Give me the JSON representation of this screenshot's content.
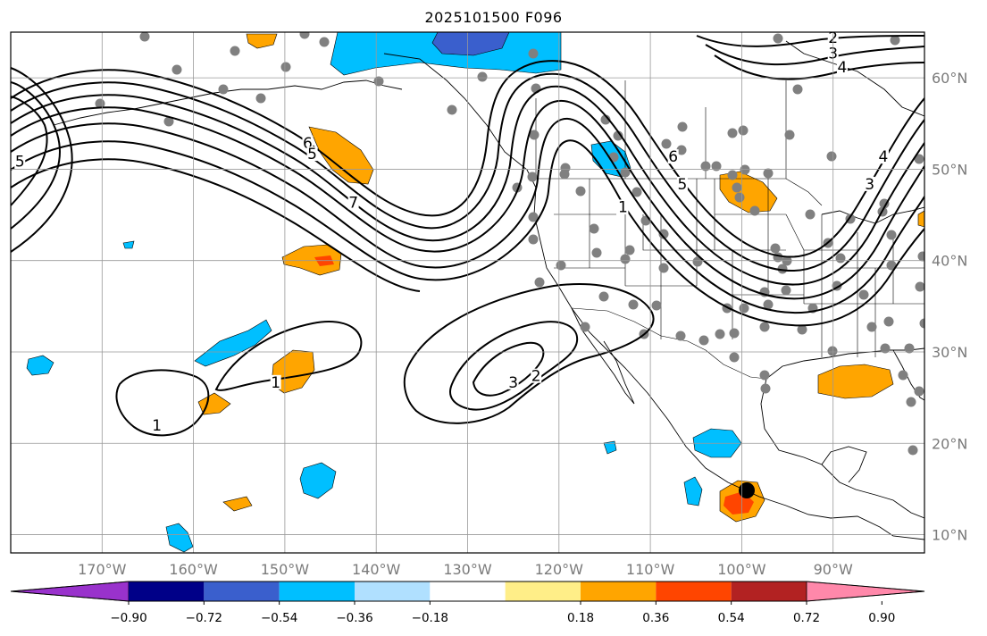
{
  "title": "2025101500 F096",
  "map": {
    "lon_ticks": [
      {
        "lon": -170,
        "label": "170°W"
      },
      {
        "lon": -160,
        "label": "160°W"
      },
      {
        "lon": -150,
        "label": "150°W"
      },
      {
        "lon": -140,
        "label": "140°W"
      },
      {
        "lon": -130,
        "label": "130°W"
      },
      {
        "lon": -120,
        "label": "120°W"
      },
      {
        "lon": -110,
        "label": "110°W"
      },
      {
        "lon": -100,
        "label": "100°W"
      },
      {
        "lon": -90,
        "label": "90°W"
      }
    ],
    "lat_ticks": [
      {
        "lat": 10,
        "label": "10°N"
      },
      {
        "lat": 20,
        "label": "20°N"
      },
      {
        "lat": 30,
        "label": "30°N"
      },
      {
        "lat": 40,
        "label": "40°N"
      },
      {
        "lat": 50,
        "label": "50°N"
      },
      {
        "lat": 60,
        "label": "60°N"
      }
    ],
    "extent": {
      "lon_min": -180,
      "lon_max": -80,
      "lat_min": 8,
      "lat_max": 65
    },
    "grid": true,
    "contour_labels": [
      {
        "text": "1",
        "lon": -151,
        "lat": 26.3
      },
      {
        "text": "1",
        "lon": -164,
        "lat": 21.6
      },
      {
        "text": "1",
        "lon": -113,
        "lat": 45.5
      },
      {
        "text": "2",
        "lon": -122.5,
        "lat": 27
      },
      {
        "text": "3",
        "lon": -125,
        "lat": 26.3
      },
      {
        "text": "2",
        "lon": -90,
        "lat": 64
      },
      {
        "text": "3",
        "lon": -90,
        "lat": 62.3
      },
      {
        "text": "4",
        "lon": -89,
        "lat": 60.8
      },
      {
        "text": "4",
        "lon": -84.5,
        "lat": 51
      },
      {
        "text": "3",
        "lon": -86,
        "lat": 48
      },
      {
        "text": "6",
        "lon": -107.5,
        "lat": 51
      },
      {
        "text": "5",
        "lon": -106.5,
        "lat": 48
      },
      {
        "text": "6",
        "lon": -147.5,
        "lat": 52.5
      },
      {
        "text": "5",
        "lon": -147,
        "lat": 51.3
      },
      {
        "text": "7",
        "lon": -142.5,
        "lat": 46
      },
      {
        "text": "5",
        "lon": -179,
        "lat": 50.5
      }
    ],
    "marker_color": "#000000",
    "station_color": "#808080"
  },
  "colorbar": {
    "ticks": [
      "−0.90",
      "−0.72",
      "−0.54",
      "−0.36",
      "−0.18",
      "0.18",
      "0.36",
      "0.54",
      "0.72",
      "0.90"
    ],
    "colors": [
      "#9932cc",
      "#000088",
      "#3a5fcd",
      "#00bfff",
      "#b0e0ff",
      "#ffffff",
      "#ffee88",
      "#ffa500",
      "#ff4500",
      "#b22222",
      "#ff88aa"
    ]
  }
}
